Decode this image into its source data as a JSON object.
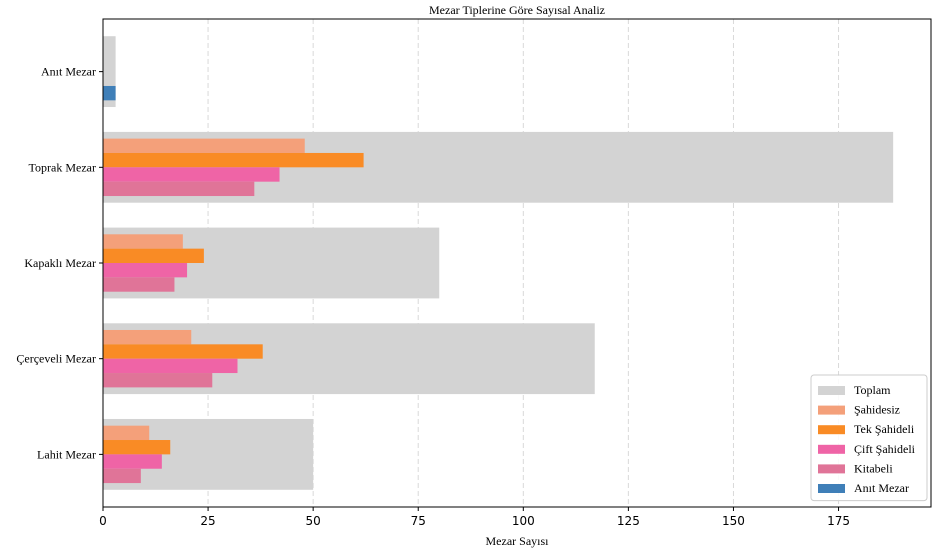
{
  "chart_data": {
    "type": "bar",
    "orientation": "horizontal",
    "title": "Mezar Tiplerine Göre Sayısal Analiz",
    "xlabel": "Mezar Sayısı",
    "ylabel": "",
    "xlim": [
      0,
      197
    ],
    "xticks": [
      0,
      25,
      50,
      75,
      100,
      125,
      150,
      175
    ],
    "grid": "x-dashed",
    "legend_position": "bottom-right",
    "categories": [
      "Anıt Mezar",
      "Toprak Mezar",
      "Kapaklı Mezar",
      "Çerçeveli Mezar",
      "Lahit Mezar"
    ],
    "total": {
      "name": "Toplam",
      "color": "#d3d3d3",
      "values": [
        3,
        188,
        80,
        117,
        50
      ]
    },
    "series": [
      {
        "name": "Şahidesiz",
        "color": "#f4a07a",
        "values": [
          null,
          48,
          19,
          21,
          11
        ]
      },
      {
        "name": "Tek Şahideli",
        "color": "#f98b25",
        "values": [
          null,
          62,
          24,
          38,
          16
        ]
      },
      {
        "name": "Çift Şahideli",
        "color": "#ef64a6",
        "values": [
          null,
          42,
          20,
          32,
          14
        ]
      },
      {
        "name": "Kitabeli",
        "color": "#e07498",
        "values": [
          null,
          36,
          17,
          26,
          9
        ]
      },
      {
        "name": "Anıt Mezar",
        "color": "#3f7fb8",
        "values": [
          3,
          null,
          null,
          null,
          null
        ]
      }
    ]
  }
}
